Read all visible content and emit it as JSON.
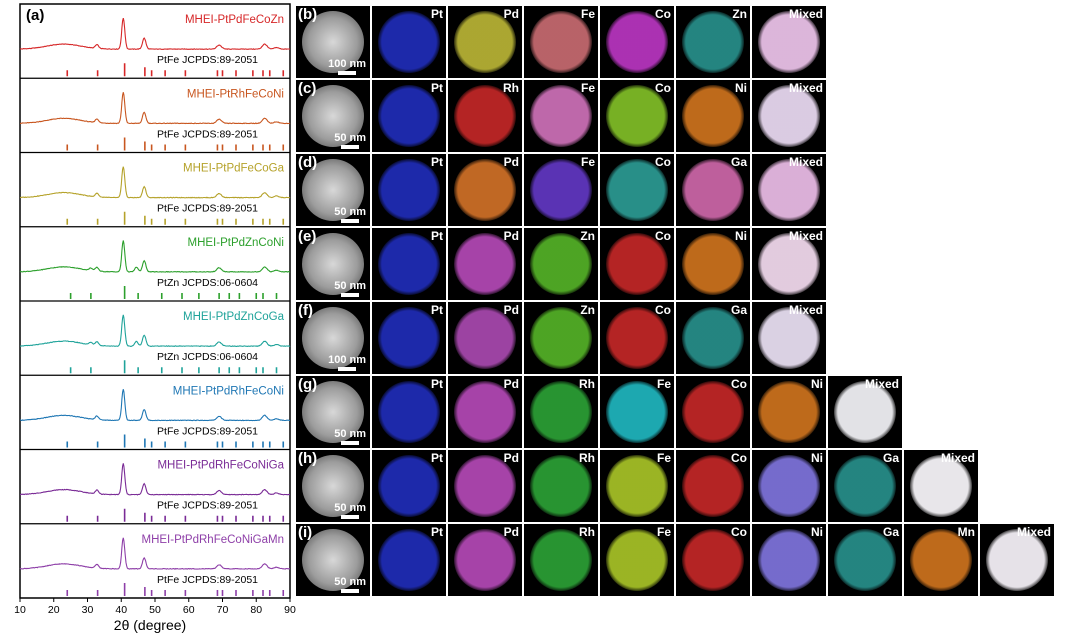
{
  "figure": {
    "panel_a_label": "(a)",
    "x_axis": {
      "label": "2θ (degree)",
      "range": [
        10,
        90
      ],
      "ticks": [
        10,
        20,
        30,
        40,
        50,
        60,
        70,
        80,
        90
      ]
    },
    "xrd_patterns": [
      {
        "sample": "MHEI-PtPdFeCoZn",
        "reference": "PtFe JCPDS:89-2051",
        "color": "#d62728",
        "ref_phase": "PtFe"
      },
      {
        "sample": "MHEI-PtRhFeCoNi",
        "reference": "PtFe JCPDS:89-2051",
        "color": "#c8561f",
        "ref_phase": "PtFe"
      },
      {
        "sample": "MHEI-PtPdFeCoGa",
        "reference": "PtFe JCPDS:89-2051",
        "color": "#b5a22a",
        "ref_phase": "PtFe"
      },
      {
        "sample": "MHEI-PtPdZnCoNi",
        "reference": "PtZn JCPDS:06-0604",
        "color": "#2ca02c",
        "ref_phase": "PtZn"
      },
      {
        "sample": "MHEI-PtPdZnCoGa",
        "reference": "PtZn JCPDS:06-0604",
        "color": "#1fa39a",
        "ref_phase": "PtZn"
      },
      {
        "sample": "MHEI-PtPdRhFeCoNi",
        "reference": "PtFe JCPDS:89-2051",
        "color": "#1f77b4",
        "ref_phase": "PtFe"
      },
      {
        "sample": "MHEI-PtPdRhFeCoNiGa",
        "reference": "PtFe JCPDS:89-2051",
        "color": "#7a2b96",
        "ref_phase": "PtFe"
      },
      {
        "sample": "MHEI-PtPdRhFeCoNiGaMn",
        "reference": "PtFe JCPDS:89-2051",
        "color": "#8e3fa8",
        "ref_phase": "PtFe"
      }
    ],
    "reference_peaks": {
      "PtFe": [
        24,
        33,
        41,
        47,
        49,
        53,
        59,
        68.5,
        70,
        74,
        79,
        82,
        84,
        88
      ],
      "PtZn": [
        25,
        31,
        41,
        45,
        52,
        58,
        63,
        69,
        72,
        75,
        80,
        82,
        86
      ]
    },
    "map_rows": [
      {
        "panel": "(b)",
        "scale": "100 nm",
        "elements": [
          {
            "name": "Pt",
            "color": "#2230c8"
          },
          {
            "name": "Pd",
            "color": "#c9c43a"
          },
          {
            "name": "Fe",
            "color": "#d9747a"
          },
          {
            "name": "Co",
            "color": "#c93ad2"
          },
          {
            "name": "Zn",
            "color": "#2a9c97"
          },
          {
            "name": "Mixed",
            "color": "#e8bfe6"
          }
        ]
      },
      {
        "panel": "(c)",
        "scale": "50 nm",
        "elements": [
          {
            "name": "Pt",
            "color": "#2230c8"
          },
          {
            "name": "Rh",
            "color": "#d42a2a"
          },
          {
            "name": "Fe",
            "color": "#e07ac8"
          },
          {
            "name": "Co",
            "color": "#8ccf2a"
          },
          {
            "name": "Ni",
            "color": "#e07d20"
          },
          {
            "name": "Mixed",
            "color": "#e6d6ee"
          }
        ]
      },
      {
        "panel": "(d)",
        "scale": "50 nm",
        "elements": [
          {
            "name": "Pt",
            "color": "#2230c8"
          },
          {
            "name": "Pd",
            "color": "#e27a2a"
          },
          {
            "name": "Fe",
            "color": "#6a3cd4"
          },
          {
            "name": "Co",
            "color": "#2fa8a0"
          },
          {
            "name": "Ga",
            "color": "#e070b8"
          },
          {
            "name": "Mixed",
            "color": "#e6b8e2"
          }
        ]
      },
      {
        "panel": "(e)",
        "scale": "50 nm",
        "elements": [
          {
            "name": "Pt",
            "color": "#2230c8"
          },
          {
            "name": "Pd",
            "color": "#c34fc6"
          },
          {
            "name": "Zn",
            "color": "#5bc12a"
          },
          {
            "name": "Co",
            "color": "#d42a2a"
          },
          {
            "name": "Ni",
            "color": "#e07d20"
          },
          {
            "name": "Mixed",
            "color": "#eed6ea"
          }
        ]
      },
      {
        "panel": "(f)",
        "scale": "100 nm",
        "elements": [
          {
            "name": "Pt",
            "color": "#2230c8"
          },
          {
            "name": "Pd",
            "color": "#b84fbf"
          },
          {
            "name": "Zn",
            "color": "#5bc12a"
          },
          {
            "name": "Co",
            "color": "#d42a2a"
          },
          {
            "name": "Ga",
            "color": "#2a9c97"
          },
          {
            "name": "Mixed",
            "color": "#e6dcef"
          }
        ]
      },
      {
        "panel": "(g)",
        "scale": "50 nm",
        "elements": [
          {
            "name": "Pt",
            "color": "#2230c8"
          },
          {
            "name": "Pd",
            "color": "#c34fc6"
          },
          {
            "name": "Rh",
            "color": "#2fae3a"
          },
          {
            "name": "Fe",
            "color": "#22c6cf"
          },
          {
            "name": "Co",
            "color": "#d42a2a"
          },
          {
            "name": "Ni",
            "color": "#e07d20"
          },
          {
            "name": "Mixed",
            "color": "#eeeef2"
          }
        ]
      },
      {
        "panel": "(h)",
        "scale": "50 nm",
        "elements": [
          {
            "name": "Pt",
            "color": "#2230c8"
          },
          {
            "name": "Pd",
            "color": "#c34fc6"
          },
          {
            "name": "Rh",
            "color": "#2fae3a"
          },
          {
            "name": "Fe",
            "color": "#b6d42a"
          },
          {
            "name": "Co",
            "color": "#d42a2a"
          },
          {
            "name": "Ni",
            "color": "#8a7ef0"
          },
          {
            "name": "Ga",
            "color": "#2a9c97"
          },
          {
            "name": "Mixed",
            "color": "#f4f2f6"
          }
        ]
      },
      {
        "panel": "(i)",
        "scale": "50 nm",
        "elements": [
          {
            "name": "Pt",
            "color": "#2230c8"
          },
          {
            "name": "Pd",
            "color": "#c34fc6"
          },
          {
            "name": "Rh",
            "color": "#2fae3a"
          },
          {
            "name": "Fe",
            "color": "#b6d42a"
          },
          {
            "name": "Co",
            "color": "#d42a2a"
          },
          {
            "name": "Ni",
            "color": "#8a7ef0"
          },
          {
            "name": "Ga",
            "color": "#2a9c97"
          },
          {
            "name": "Mn",
            "color": "#e07d20"
          },
          {
            "name": "Mixed",
            "color": "#f2eef4"
          }
        ]
      }
    ]
  }
}
